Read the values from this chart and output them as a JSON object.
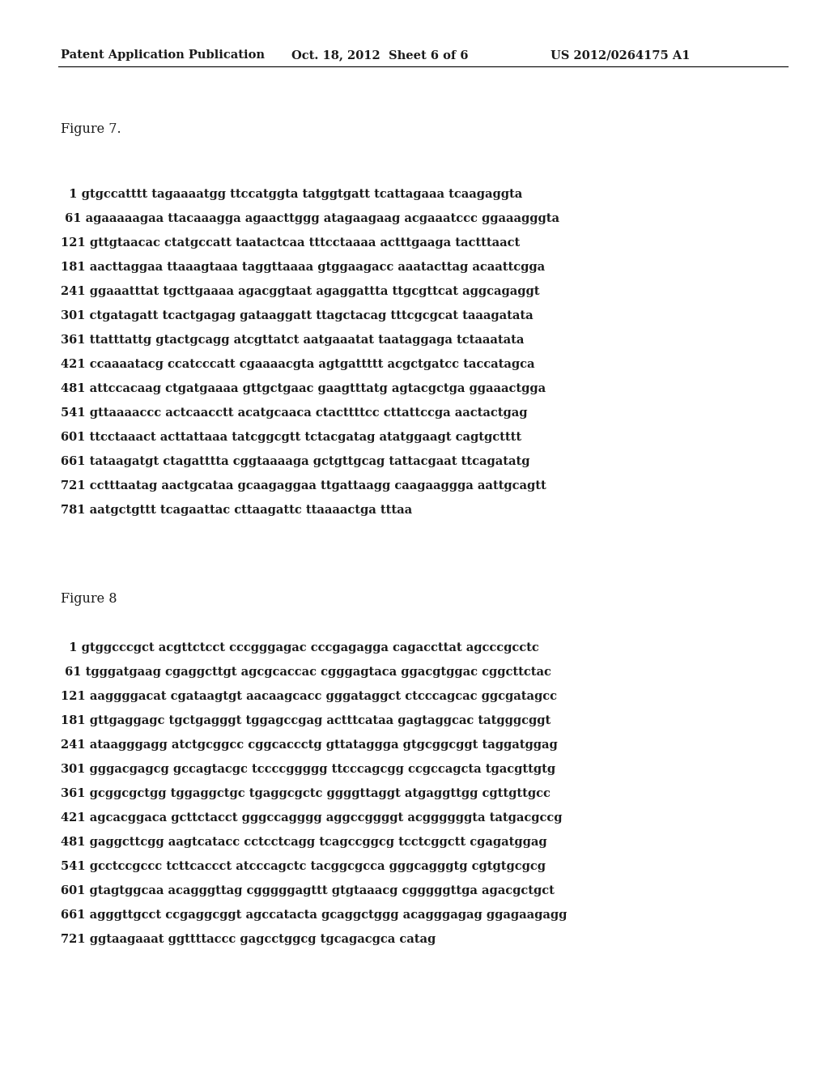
{
  "header_left": "Patent Application Publication",
  "header_center": "Oct. 18, 2012  Sheet 6 of 6",
  "header_right": "US 2012/0264175 A1",
  "figure7_label": "Figure 7.",
  "figure7_lines": [
    "  1 gtgccatttt tagaaaatgg ttccatggta tatggtgatt tcattagaaa tcaagaggta",
    " 61 agaaaaagaa ttacaaagga agaacttggg atagaagaag acgaaatccc ggaaagggta",
    "121 gttgtaacac ctatgccatt taatactcaa tttcctaaaa actttgaaga tactttaact",
    "181 aacttaggaa ttaaagtaaa taggttaaaa gtggaagacc aaatacttag acaattcgga",
    "241 ggaaatttat tgcttgaaaa agacggtaat agaggattta ttgcgttcat aggcagaggt",
    "301 ctgatagatt tcactgagag gataaggatt ttagctacag tttcgcgcat taaagatata",
    "361 ttatttattg gtactgcagg atcgttatct aatgaaatat taataggaga tctaaatata",
    "421 ccaaaatacg ccatcccatt cgaaaacgta agtgattttt acgctgatcc taccatagca",
    "481 attccacaag ctgatgaaaa gttgctgaac gaagtttatg agtacgctga ggaaactgga",
    "541 gttaaaaccc actcaacctt acatgcaaca ctacttttcc cttattccga aactactgag",
    "601 ttcctaaact acttattaaa tatcggcgtt tctacgatag atatggaagt cagtgctttt",
    "661 tataagatgt ctagatttta cggtaaaaga gctgttgcag tattacgaat ttcagatatg",
    "721 cctttaatag aactgcataa gcaagaggaa ttgattaagg caagaaggga aattgcagtt",
    "781 aatgctgttt tcagaattac cttaagattc ttaaaactga tttaa"
  ],
  "figure8_label": "Figure 8",
  "figure8_lines": [
    "  1 gtggcccgct acgttctcct cccgggagac cccgagagga cagaccttat agcccgcctc",
    " 61 tgggatgaag cgaggcttgt agcgcaccac cgggagtaca ggacgtggac cggcttctac",
    "121 aaggggacat cgataagtgt aacaagcacc gggataggct ctcccagcac ggcgatagcc",
    "181 gttgaggagc tgctgagggt tggagccgag actttcataa gagtaggcac tatgggcggt",
    "241 ataagggagg atctgcggcc cggcaccctg gttataggga gtgcggcggt taggatggag",
    "301 gggacgagcg gccagtacgc tccccggggg ttcccagcgg ccgccagcta tgacgttgtg",
    "361 gcggcgctgg tggaggctgc tgaggcgctc ggggttaggt atgaggttgg cgttgttgcc",
    "421 agcacggaca gcttctacct gggccagggg aggccggggt acggggggta tatgacgccg",
    "481 gaggcttcgg aagtcatacc cctcctcagg tcagccggcg tcctcggctt cgagatggag",
    "541 gcctccgccc tcttcaccct atcccagctc tacggcgcca gggcagggtg cgtgtgcgcg",
    "601 gtagtggcaa acagggttag cgggggagttt gtgtaaacg cgggggttga agacgctgct",
    "661 agggttgcct ccgaggcggt agccatacta gcaggctggg acagggagag ggagaagagg",
    "721 ggtaagaaat ggttttaccc gagcctggcg tgcagacgca catag"
  ],
  "background_color": "#ffffff",
  "text_color": "#1a1a1a",
  "header_fontsize": 10.5,
  "figure_label_fontsize": 11.5,
  "sequence_fontsize": 10.5
}
